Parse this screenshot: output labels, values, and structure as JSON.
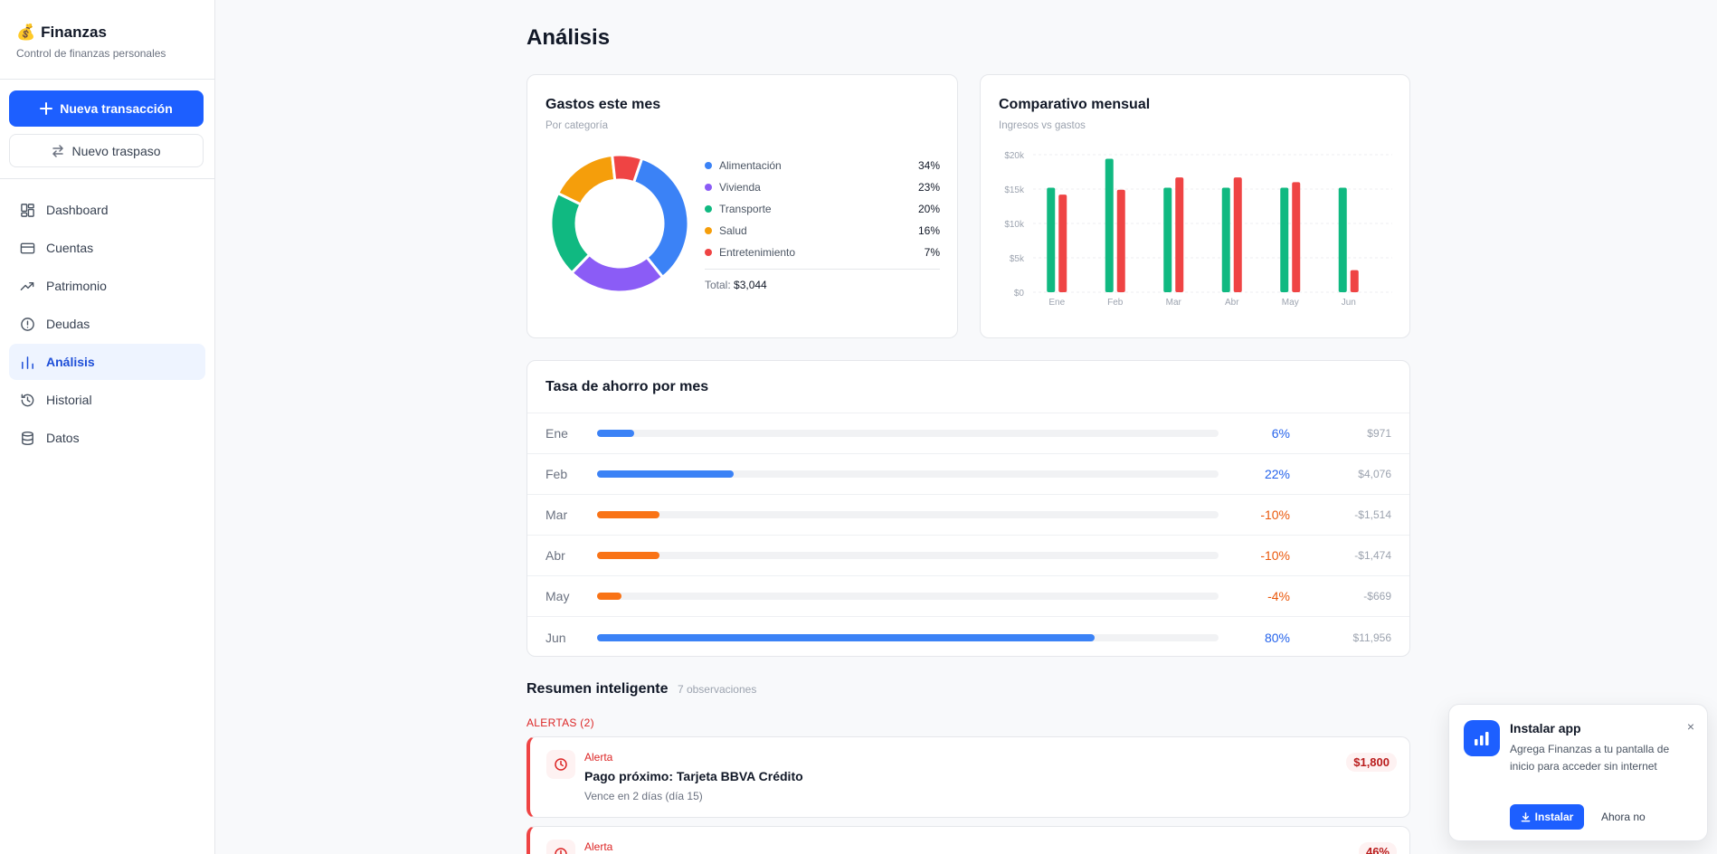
{
  "brand": {
    "emoji": "💰",
    "title": "Finanzas",
    "subtitle": "Control de finanzas personales"
  },
  "actions": {
    "new_transaction": "Nueva transacción",
    "new_transfer": "Nuevo traspaso"
  },
  "nav": [
    {
      "label": "Dashboard",
      "icon": "dashboard-icon",
      "active": false
    },
    {
      "label": "Cuentas",
      "icon": "credit-card-icon",
      "active": false
    },
    {
      "label": "Patrimonio",
      "icon": "trending-up-icon",
      "active": false
    },
    {
      "label": "Deudas",
      "icon": "alert-circle-icon",
      "active": false
    },
    {
      "label": "Análisis",
      "icon": "bar-chart-icon",
      "active": true
    },
    {
      "label": "Historial",
      "icon": "history-icon",
      "active": false
    },
    {
      "label": "Datos",
      "icon": "database-icon",
      "active": false
    }
  ],
  "page": {
    "title": "Análisis"
  },
  "gastos": {
    "title": "Gastos este mes",
    "subtitle": "Por categoría",
    "total_label": "Total:",
    "total_value": "$3,044"
  },
  "comparativo": {
    "title": "Comparativo mensual",
    "subtitle": "Ingresos vs gastos"
  },
  "ahorro": {
    "title": "Tasa de ahorro por mes",
    "rows": [
      {
        "month": "Ene",
        "pct": "6%",
        "value": 6,
        "amount": "$971",
        "positive": true
      },
      {
        "month": "Feb",
        "pct": "22%",
        "value": 22,
        "amount": "$4,076",
        "positive": true
      },
      {
        "month": "Mar",
        "pct": "-10%",
        "value": 10,
        "amount": "-$1,514",
        "positive": false
      },
      {
        "month": "Abr",
        "pct": "-10%",
        "value": 10,
        "amount": "-$1,474",
        "positive": false
      },
      {
        "month": "May",
        "pct": "-4%",
        "value": 4,
        "amount": "-$669",
        "positive": false
      },
      {
        "month": "Jun",
        "pct": "80%",
        "value": 80,
        "amount": "$11,956",
        "positive": true
      }
    ]
  },
  "resumen": {
    "title": "Resumen inteligente",
    "count": "7 observaciones",
    "alerts_label": "ALERTAS (2)",
    "alerts": [
      {
        "kind": "Alerta",
        "title": "Pago próximo: Tarjeta BBVA Crédito",
        "desc": "Vence en 2 días (día 15)",
        "amount": "$1,800"
      },
      {
        "kind": "Alerta",
        "title": "",
        "desc": "",
        "amount": "46%"
      }
    ]
  },
  "install": {
    "title": "Instalar app",
    "desc": "Agrega Finanzas a tu pantalla de inicio para acceder sin internet",
    "install_label": "Instalar",
    "later_label": "Ahora no",
    "close": "×"
  },
  "colors": {
    "primary": "#1d5fff",
    "income": "#10b981",
    "expense": "#ef4444",
    "positive": "#3b82f6",
    "negative": "#f97316"
  },
  "chart_data": [
    {
      "type": "pie",
      "title": "Gastos este mes",
      "subtitle": "Por categoría",
      "categories": [
        "Alimentación",
        "Vivienda",
        "Transporte",
        "Salud",
        "Entretenimiento"
      ],
      "values": [
        34,
        23,
        20,
        16,
        7
      ],
      "labels": [
        "34%",
        "23%",
        "20%",
        "16%",
        "7%"
      ],
      "colors": [
        "#3b82f6",
        "#8b5cf6",
        "#10b981",
        "#f59e0b",
        "#ef4444"
      ]
    },
    {
      "type": "bar",
      "title": "Comparativo mensual",
      "subtitle": "Ingresos vs gastos",
      "categories": [
        "Ene",
        "Feb",
        "Mar",
        "Abr",
        "May",
        "Jun"
      ],
      "series": [
        {
          "values": [
            15200,
            19400,
            15200,
            15200,
            15200,
            15200
          ],
          "color": "#10b981"
        },
        {
          "values": [
            14200,
            14900,
            16700,
            16700,
            16000,
            3200
          ],
          "color": "#ef4444"
        }
      ],
      "ylim": [
        0,
        20000
      ],
      "yticks": [
        0,
        5000,
        10000,
        15000,
        20000
      ],
      "ytick_labels": [
        "$0",
        "$5k",
        "$10k",
        "$15k",
        "$20k"
      ],
      "grid": true
    }
  ]
}
